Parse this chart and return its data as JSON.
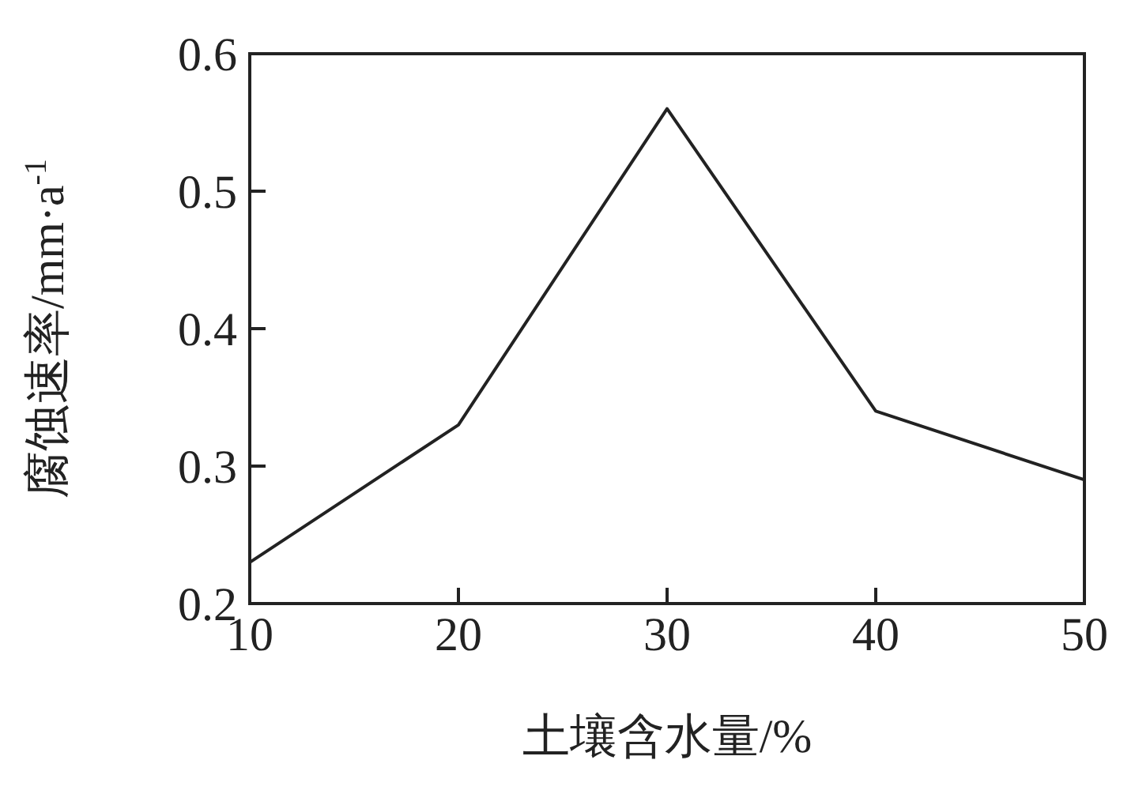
{
  "chart_data": {
    "type": "line",
    "xlabel": "土壤含水量/%",
    "ylabel": "腐蚀速率/mm·a$^{-1}$",
    "x": [
      10,
      20,
      30,
      40,
      50
    ],
    "series": [
      {
        "color": "#222222",
        "values": [
          0.23,
          0.33,
          0.56,
          0.34,
          0.29
        ]
      }
    ],
    "xlim": [
      10,
      50
    ],
    "xticks": [
      10,
      20,
      30,
      40,
      50
    ],
    "ylim": [
      0.2,
      0.6
    ],
    "yticks": [
      0.2,
      0.3,
      0.4,
      0.5,
      0.6
    ],
    "grid": false,
    "marker": "none",
    "line_style": "solid"
  }
}
